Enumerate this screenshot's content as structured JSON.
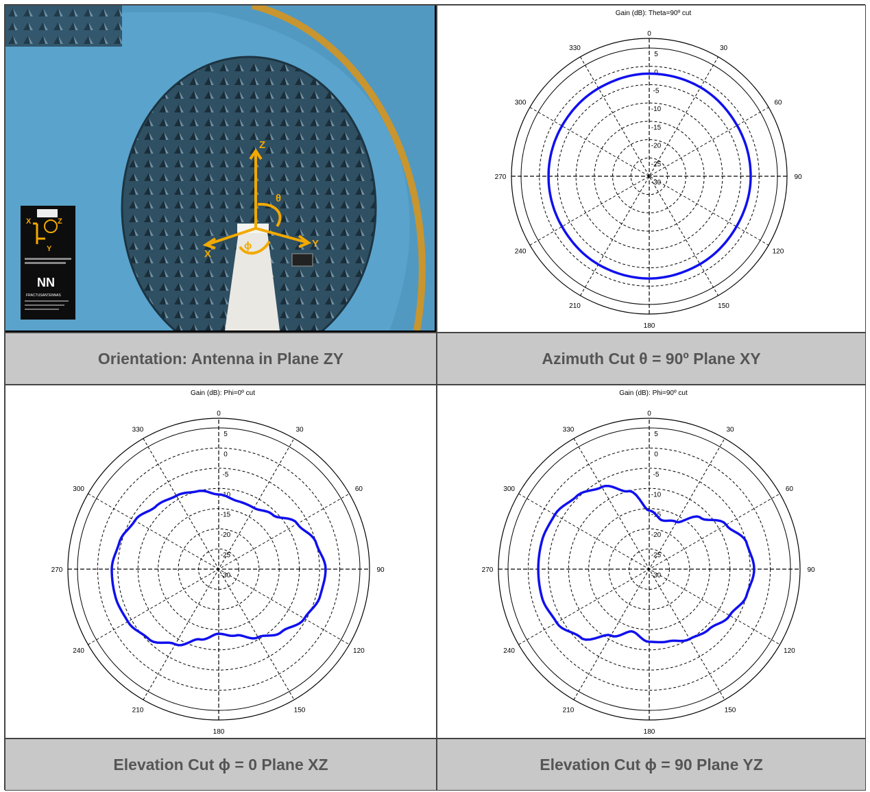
{
  "colors": {
    "pattern": "#1010ee",
    "caption_bg": "#c8c8c8",
    "caption_text": "#555555",
    "chamber": "#5a9fc9",
    "axis_arrows": "#f2a900"
  },
  "captions": {
    "photo": "Orientation: Antenna in Plane ZY",
    "azimuth": "Azimuth Cut θ = 90º Plane XY",
    "elev0": "Elevation Cut ϕ = 0 Plane XZ",
    "elev90": "Elevation Cut ϕ = 90 Plane YZ"
  },
  "photo": {
    "axis_labels": {
      "z": "Z",
      "y": "Y",
      "x": "X",
      "theta": "θ",
      "phi": "ϕ"
    },
    "card": {
      "axis_x": "X",
      "axis_z": "Z",
      "axis_y": "Y",
      "logo": "NN",
      "brand": "FRACTUSANTENNAS"
    }
  },
  "chart_data": [
    {
      "type": "polar",
      "title": "Gain (dB): Theta=90º cut",
      "angle_labels": [
        "0",
        "30",
        "60",
        "90",
        "120",
        "150",
        "180",
        "210",
        "240",
        "270",
        "300",
        "330"
      ],
      "radial_ticks": [
        "5",
        "0",
        "-5",
        "-10",
        "-15",
        "-20",
        "-25",
        "-30"
      ],
      "rlim": [
        -30,
        5
      ],
      "series": [
        {
          "angles_deg": [
            0,
            30,
            60,
            90,
            120,
            150,
            180,
            210,
            240,
            270,
            300,
            330
          ],
          "gain_db": [
            -2.0,
            -2.0,
            -2.3,
            -2.3,
            -2.5,
            -2.3,
            -2.1,
            -2.2,
            -2.5,
            -2.5,
            -2.5,
            -2.3
          ]
        }
      ]
    },
    {
      "type": "polar",
      "title": "Gain (dB): Phi=0º cut",
      "angle_labels": [
        "0",
        "30",
        "60",
        "90",
        "120",
        "150",
        "180",
        "210",
        "240",
        "270",
        "300",
        "330"
      ],
      "radial_ticks": [
        "5",
        "0",
        "-5",
        "-10",
        "-15",
        "-20",
        "-25",
        "-30"
      ],
      "rlim": [
        -30,
        5
      ],
      "series": [
        {
          "angles_deg": [
            0,
            15,
            30,
            45,
            60,
            75,
            90,
            105,
            120,
            135,
            150,
            165,
            180,
            195,
            210,
            225,
            240,
            255,
            270,
            285,
            300,
            315,
            330,
            345
          ],
          "gain_db": [
            -11.5,
            -12.5,
            -12.5,
            -11,
            -7.5,
            -5,
            -3.5,
            -4,
            -5.5,
            -8,
            -10.5,
            -13,
            -14,
            -12,
            -8.5,
            -5.5,
            -4,
            -3.5,
            -3.5,
            -4.5,
            -6,
            -8,
            -9,
            -10
          ]
        }
      ]
    },
    {
      "type": "polar",
      "title": "Gain (dB): Phi=90º cut",
      "angle_labels": [
        "0",
        "30",
        "60",
        "90",
        "120",
        "150",
        "180",
        "210",
        "240",
        "270",
        "300",
        "330"
      ],
      "radial_ticks": [
        "5",
        "0",
        "-5",
        "-10",
        "-15",
        "-20",
        "-25",
        "-30"
      ],
      "rlim": [
        -30,
        5
      ],
      "series": [
        {
          "angles_deg": [
            0,
            15,
            30,
            45,
            60,
            75,
            90,
            105,
            120,
            135,
            150,
            165,
            180,
            195,
            210,
            225,
            240,
            255,
            270,
            285,
            300,
            315,
            330,
            345
          ],
          "gain_db": [
            -15.5,
            -17.5,
            -16.5,
            -12,
            -8,
            -5,
            -4,
            -5,
            -7,
            -9,
            -10,
            -11.5,
            -12,
            -14,
            -11,
            -6,
            -3.5,
            -2.5,
            -2.5,
            -2.5,
            -3,
            -4.5,
            -6.5,
            -10
          ]
        }
      ]
    }
  ]
}
